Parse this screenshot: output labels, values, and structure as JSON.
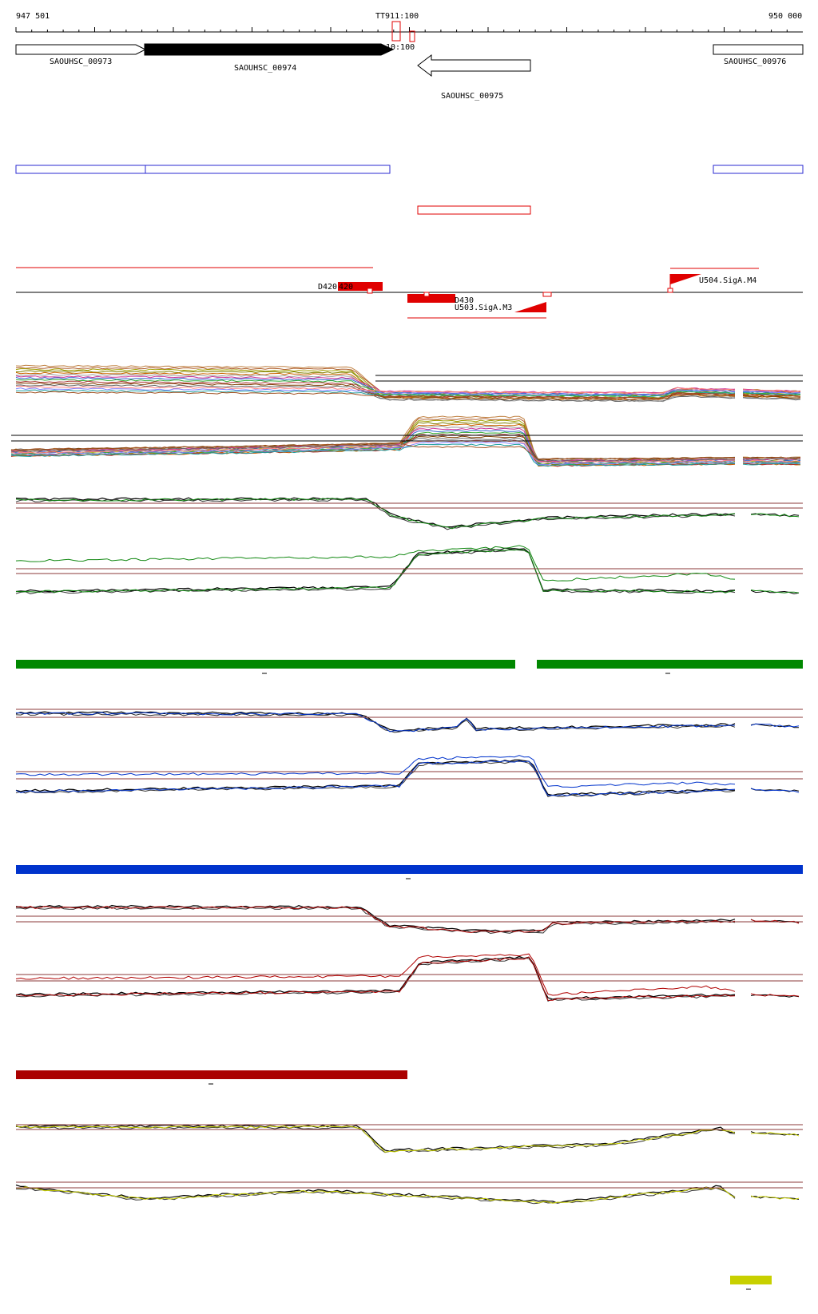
{
  "ruler": {
    "start_label": "947 501",
    "end_label": "950 000",
    "marker_label": "TT911:100",
    "marker2_label": "10:100"
  },
  "genes": [
    {
      "id": "SAOUHSC_00973",
      "label": "SAOUHSC_00973",
      "strand": "+",
      "filled": false
    },
    {
      "id": "SAOUHSC_00974",
      "label": "SAOUHSC_00974",
      "strand": "+",
      "filled": true
    },
    {
      "id": "SAOUHSC_00975",
      "label": "SAOUHSC_00975",
      "strand": "-",
      "filled": false
    },
    {
      "id": "SAOUHSC_00976",
      "label": "SAOUHSC_00976",
      "strand": "+",
      "filled": false
    }
  ],
  "features": {
    "d420_label": "D420",
    "d420b_label": "420",
    "d430_label": "D430",
    "u503_label": "U503.SigA.M3",
    "u504_label": "U504.SigA.M4"
  },
  "colors": {
    "black": "#000000",
    "red": "#e00000",
    "blue": "#2a2ad0",
    "green": "#118811",
    "dark_red": "#b00000",
    "bright_blue": "#0033cc",
    "yellow": "#c8d000",
    "bar_green": "#008800",
    "bar_blue": "#0033cc",
    "bar_red": "#aa0000",
    "bar_yellow": "#c8d000",
    "thresh": "#8b3a3a"
  }
}
